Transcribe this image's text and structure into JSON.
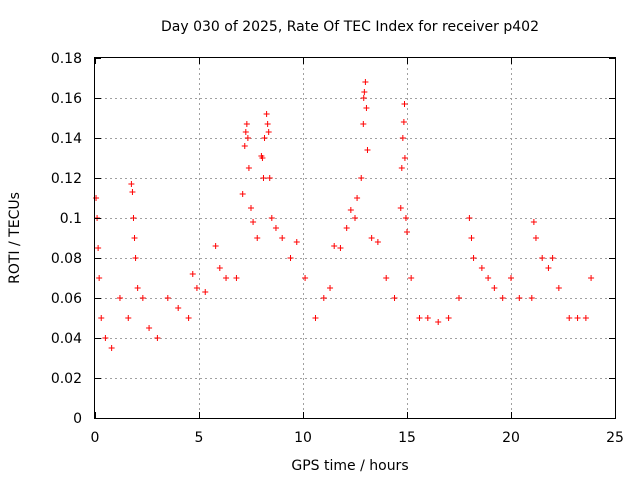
{
  "chart_data": {
    "type": "scatter",
    "title": "Day 030 of 2025, Rate Of TEC Index for receiver p402",
    "xlabel": "GPS time / hours",
    "ylabel": "ROTI / TECUs",
    "xlim": [
      0,
      25
    ],
    "ylim": [
      0,
      0.18
    ],
    "x_ticks": [
      0,
      5,
      10,
      15,
      20,
      25
    ],
    "x_tick_labels": [
      "0",
      "5",
      "10",
      "15",
      "20",
      "25"
    ],
    "y_ticks": [
      0,
      0.02,
      0.04,
      0.06,
      0.08,
      0.1,
      0.12,
      0.14,
      0.16,
      0.18
    ],
    "y_tick_labels": [
      "0",
      "0.02",
      "0.04",
      "0.06",
      "0.08",
      "0.1",
      "0.12",
      "0.14",
      "0.16",
      "0.18"
    ],
    "grid": true,
    "marker": "plus",
    "color": "#ff0000",
    "points": [
      [
        0.05,
        0.11
      ],
      [
        0.1,
        0.1
      ],
      [
        0.15,
        0.085
      ],
      [
        0.2,
        0.07
      ],
      [
        0.3,
        0.05
      ],
      [
        0.5,
        0.04
      ],
      [
        0.8,
        0.035
      ],
      [
        1.2,
        0.06
      ],
      [
        1.6,
        0.05
      ],
      [
        1.75,
        0.117
      ],
      [
        1.8,
        0.113
      ],
      [
        1.85,
        0.1
      ],
      [
        1.9,
        0.09
      ],
      [
        1.95,
        0.08
      ],
      [
        2.05,
        0.065
      ],
      [
        2.3,
        0.06
      ],
      [
        2.6,
        0.045
      ],
      [
        3.0,
        0.04
      ],
      [
        3.5,
        0.06
      ],
      [
        4.0,
        0.055
      ],
      [
        4.5,
        0.05
      ],
      [
        4.7,
        0.072
      ],
      [
        4.9,
        0.065
      ],
      [
        5.3,
        0.063
      ],
      [
        5.8,
        0.086
      ],
      [
        6.0,
        0.075
      ],
      [
        6.3,
        0.07
      ],
      [
        6.8,
        0.07
      ],
      [
        7.1,
        0.112
      ],
      [
        7.2,
        0.136
      ],
      [
        7.25,
        0.143
      ],
      [
        7.3,
        0.147
      ],
      [
        7.35,
        0.14
      ],
      [
        7.4,
        0.125
      ],
      [
        7.5,
        0.105
      ],
      [
        7.6,
        0.098
      ],
      [
        7.8,
        0.09
      ],
      [
        8.0,
        0.131
      ],
      [
        8.05,
        0.13
      ],
      [
        8.1,
        0.12
      ],
      [
        8.15,
        0.14
      ],
      [
        8.25,
        0.152
      ],
      [
        8.3,
        0.147
      ],
      [
        8.35,
        0.143
      ],
      [
        8.4,
        0.12
      ],
      [
        8.5,
        0.1
      ],
      [
        8.7,
        0.095
      ],
      [
        9.0,
        0.09
      ],
      [
        9.4,
        0.08
      ],
      [
        9.7,
        0.088
      ],
      [
        10.1,
        0.07
      ],
      [
        10.6,
        0.05
      ],
      [
        11.0,
        0.06
      ],
      [
        11.3,
        0.065
      ],
      [
        11.5,
        0.086
      ],
      [
        11.8,
        0.085
      ],
      [
        12.1,
        0.095
      ],
      [
        12.3,
        0.104
      ],
      [
        12.5,
        0.1
      ],
      [
        12.6,
        0.11
      ],
      [
        12.8,
        0.12
      ],
      [
        12.9,
        0.147
      ],
      [
        12.92,
        0.16
      ],
      [
        12.95,
        0.163
      ],
      [
        13.0,
        0.168
      ],
      [
        13.05,
        0.155
      ],
      [
        13.1,
        0.134
      ],
      [
        13.3,
        0.09
      ],
      [
        13.6,
        0.088
      ],
      [
        14.0,
        0.07
      ],
      [
        14.4,
        0.06
      ],
      [
        14.7,
        0.105
      ],
      [
        14.75,
        0.125
      ],
      [
        14.8,
        0.14
      ],
      [
        14.85,
        0.148
      ],
      [
        14.88,
        0.157
      ],
      [
        14.9,
        0.13
      ],
      [
        14.95,
        0.1
      ],
      [
        15.0,
        0.093
      ],
      [
        15.2,
        0.07
      ],
      [
        15.6,
        0.05
      ],
      [
        16.0,
        0.05
      ],
      [
        16.5,
        0.048
      ],
      [
        17.0,
        0.05
      ],
      [
        17.5,
        0.06
      ],
      [
        18.0,
        0.1
      ],
      [
        18.1,
        0.09
      ],
      [
        18.2,
        0.08
      ],
      [
        18.6,
        0.075
      ],
      [
        18.9,
        0.07
      ],
      [
        19.2,
        0.065
      ],
      [
        19.6,
        0.06
      ],
      [
        20.0,
        0.07
      ],
      [
        20.4,
        0.06
      ],
      [
        21.0,
        0.06
      ],
      [
        21.1,
        0.098
      ],
      [
        21.2,
        0.09
      ],
      [
        21.5,
        0.08
      ],
      [
        21.8,
        0.075
      ],
      [
        22.0,
        0.08
      ],
      [
        22.3,
        0.065
      ],
      [
        22.8,
        0.05
      ],
      [
        23.2,
        0.05
      ],
      [
        23.6,
        0.05
      ],
      [
        23.85,
        0.07
      ]
    ]
  }
}
